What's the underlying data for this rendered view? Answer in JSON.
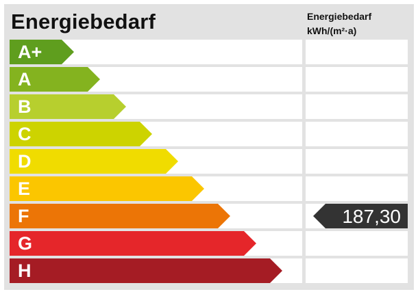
{
  "header": {
    "title": "Energiebedarf",
    "value_column_line1": "Energiebedarf",
    "value_column_line2": "kWh/(m²·a)"
  },
  "classes": [
    {
      "label": "A+",
      "color": "#5f9e1e"
    },
    {
      "label": "A",
      "color": "#84b31f"
    },
    {
      "label": "B",
      "color": "#b7cf2e"
    },
    {
      "label": "C",
      "color": "#cdd300"
    },
    {
      "label": "D",
      "color": "#f0dc00"
    },
    {
      "label": "E",
      "color": "#fbc600"
    },
    {
      "label": "F",
      "color": "#ec7506"
    },
    {
      "label": "G",
      "color": "#e5262a"
    },
    {
      "label": "H",
      "color": "#a51c24"
    }
  ],
  "indicator": {
    "class": "F",
    "value": "187,30",
    "color": "#333333"
  }
}
